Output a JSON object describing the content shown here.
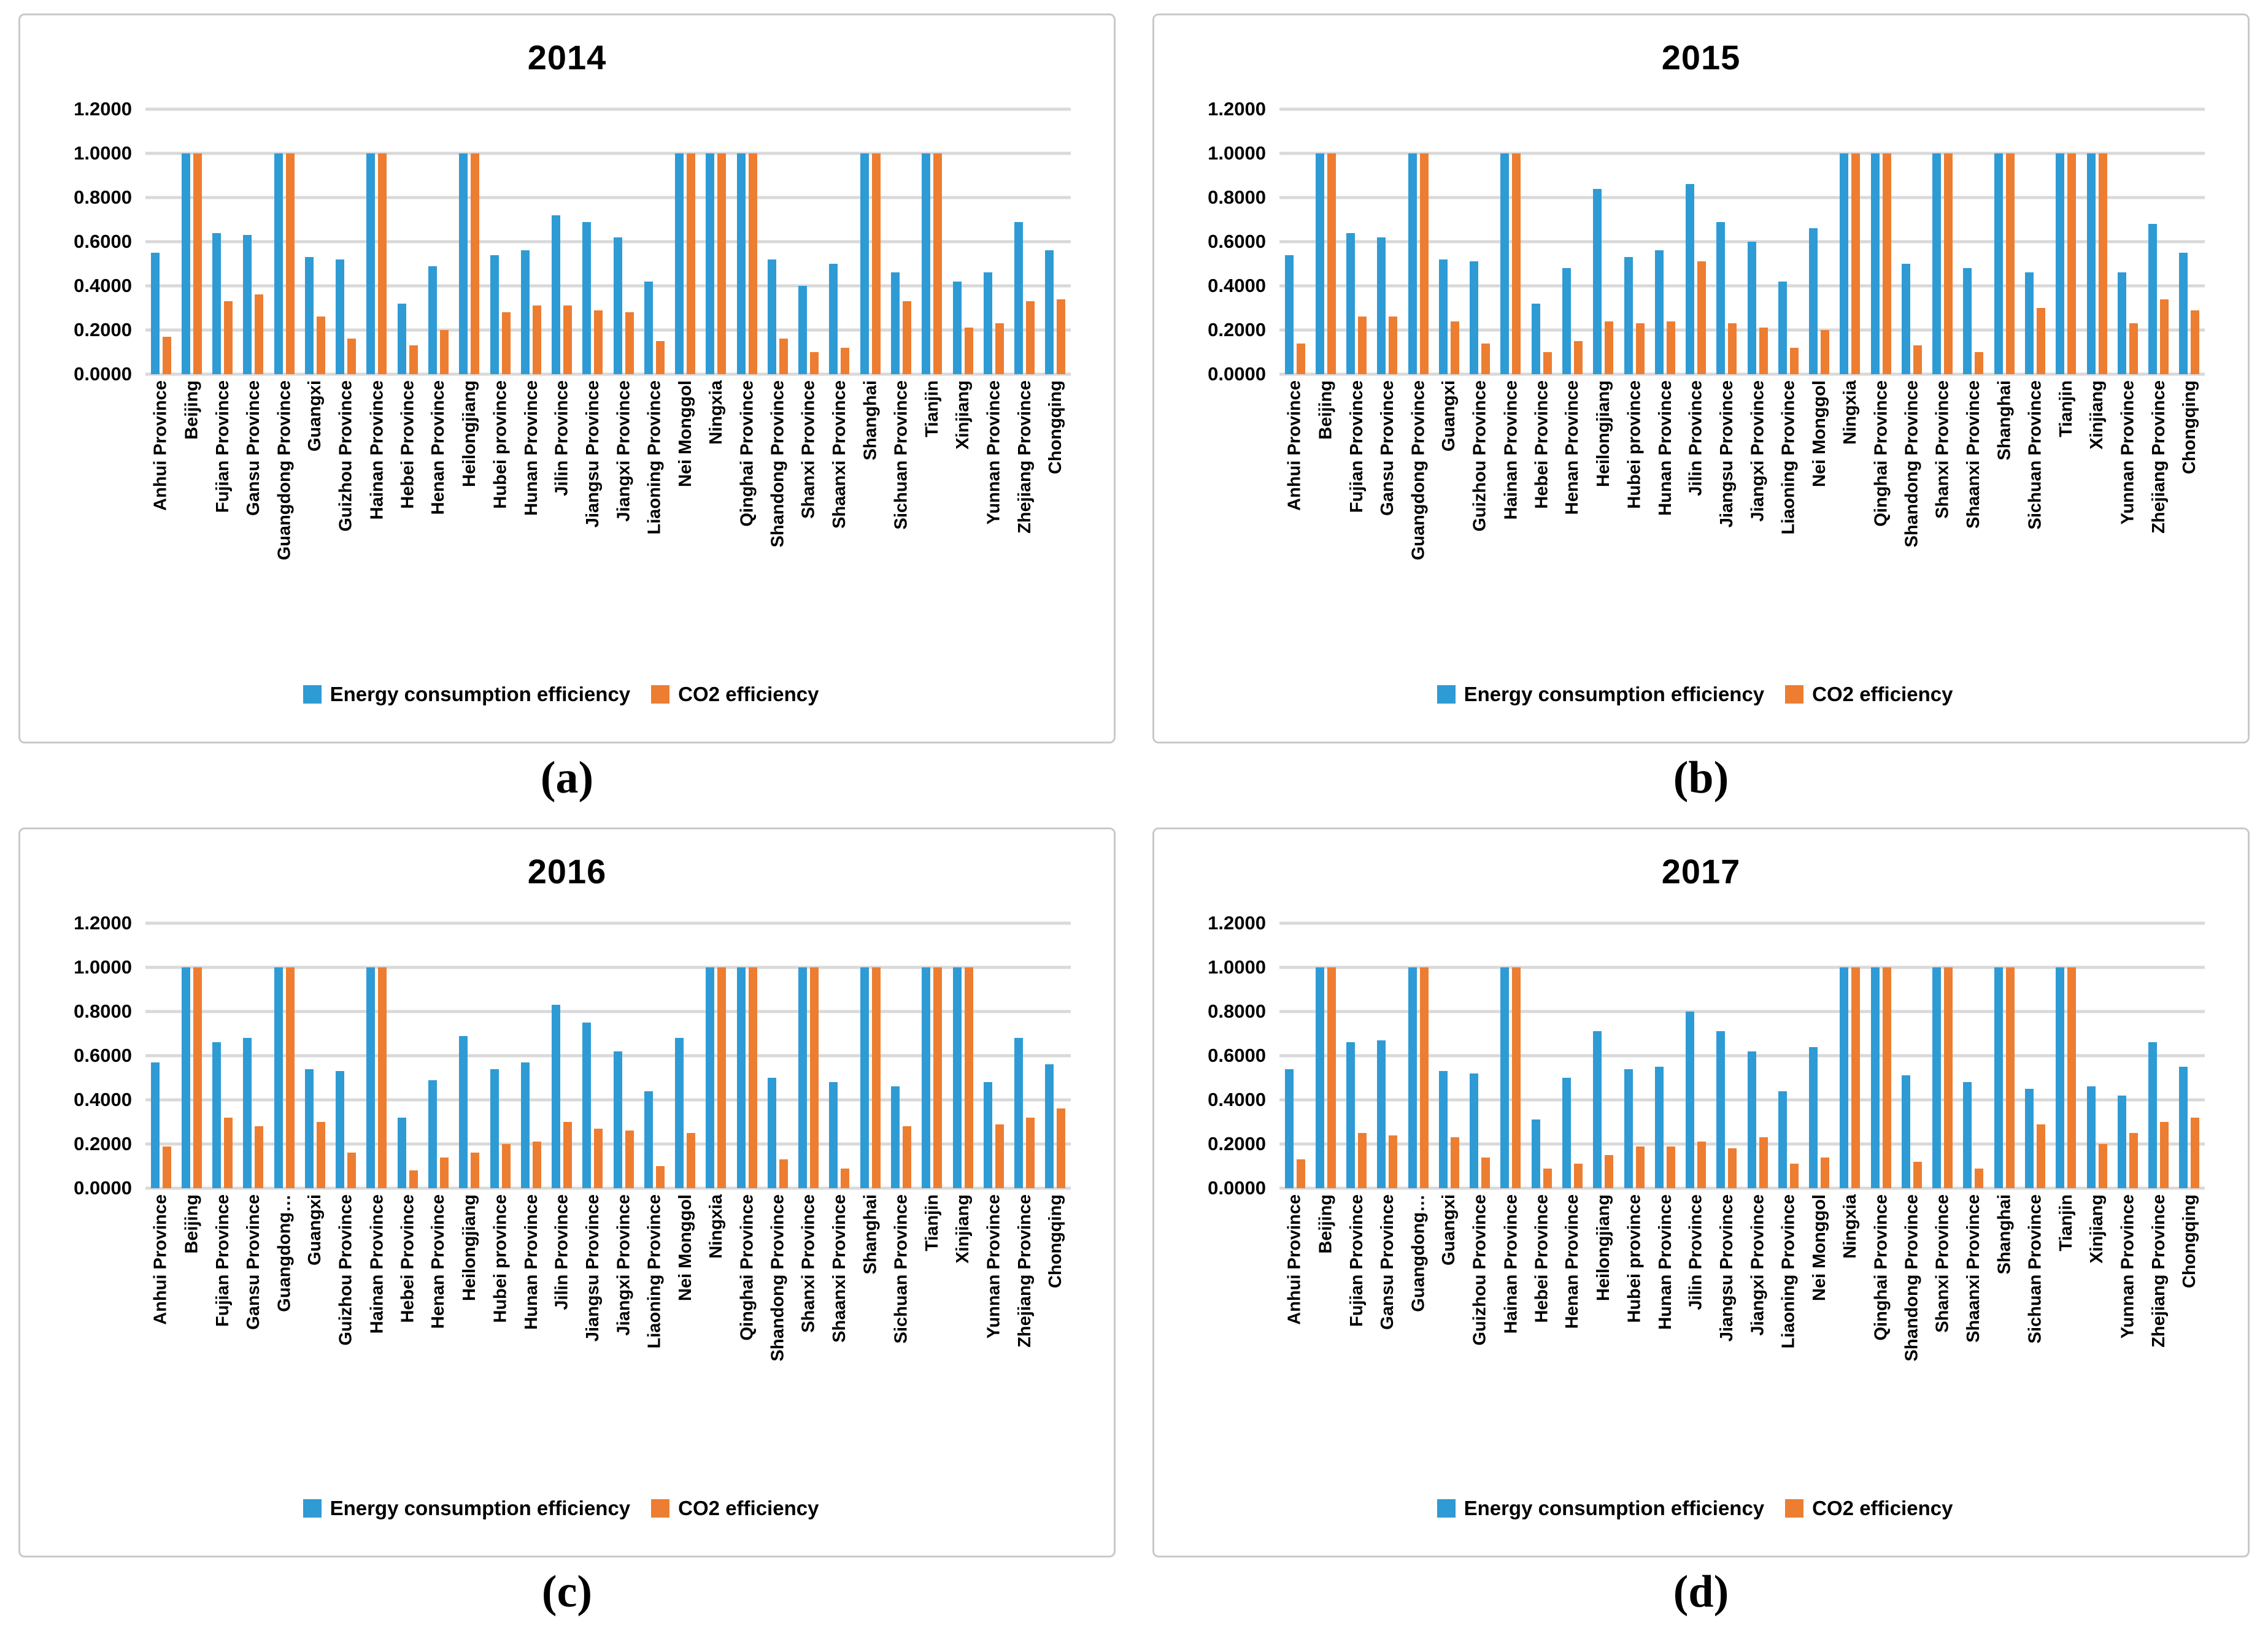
{
  "colors": {
    "energy": "#2e9bd5",
    "co2": "#ed7d31",
    "gridline": "#d9d9d9",
    "panel_border": "#c9c9c9",
    "text": "#000000"
  },
  "legend": {
    "energy_label": "Energy consumption efficiency",
    "co2_label": "CO2 efficiency"
  },
  "captions": [
    "(a)",
    "(b)",
    "(c)",
    "(d)"
  ],
  "chart_data": [
    {
      "type": "bar",
      "title": "2014",
      "xlabel": "",
      "ylabel": "",
      "ylim": [
        0,
        1.2
      ],
      "grid": true,
      "legend_position": "bottom",
      "yticks": [
        "1.2000",
        "1.0000",
        "0.8000",
        "0.6000",
        "0.4000",
        "0.2000",
        "0.0000"
      ],
      "categories": [
        "Anhui Province",
        "Beijing",
        "Fujian Province",
        "Gansu Province",
        "Guangdong Province",
        "Guangxi",
        "Guizhou Province",
        "Hainan Province",
        "Hebei Province",
        "Henan Province",
        "Heilongjiang",
        "Hubei province",
        "Hunan Province",
        "Jilin Province",
        "Jiangsu Province",
        "Jiangxi Province",
        "Liaoning Province",
        "Nei Monggol",
        "Ningxia",
        "Qinghai Province",
        "Shandong Province",
        "Shanxi Province",
        "Shaanxi Province",
        "Shanghai",
        "Sichuan Province",
        "Tianjin",
        "Xinjiang",
        "Yunnan Province",
        "Zhejiang Province",
        "Chongqing"
      ],
      "series": [
        {
          "name": "Energy consumption efficiency",
          "values": [
            0.55,
            1.0,
            0.64,
            0.63,
            1.0,
            0.53,
            0.52,
            1.0,
            0.32,
            0.49,
            1.0,
            0.54,
            0.56,
            0.72,
            0.69,
            0.62,
            0.42,
            1.0,
            1.0,
            1.0,
            0.52,
            0.4,
            0.5,
            1.0,
            0.46,
            1.0,
            0.42,
            0.46,
            0.69,
            0.56
          ]
        },
        {
          "name": "CO2 efficiency",
          "values": [
            0.17,
            1.0,
            0.33,
            0.36,
            1.0,
            0.26,
            0.16,
            1.0,
            0.13,
            0.2,
            1.0,
            0.28,
            0.31,
            0.31,
            0.29,
            0.28,
            0.15,
            1.0,
            1.0,
            1.0,
            0.16,
            0.1,
            0.12,
            1.0,
            0.33,
            1.0,
            0.21,
            0.23,
            0.33,
            0.34
          ]
        }
      ]
    },
    {
      "type": "bar",
      "title": "2015",
      "xlabel": "",
      "ylabel": "",
      "ylim": [
        0,
        1.2
      ],
      "grid": true,
      "legend_position": "bottom",
      "yticks": [
        "1.2000",
        "1.0000",
        "0.8000",
        "0.6000",
        "0.4000",
        "0.2000",
        "0.0000"
      ],
      "categories": [
        "Anhui Province",
        "Beijing",
        "Fujian Province",
        "Gansu Province",
        "Guangdong Province",
        "Guangxi",
        "Guizhou Province",
        "Hainan Province",
        "Hebei Province",
        "Henan Province",
        "Heilongjiang",
        "Hubei province",
        "Hunan Province",
        "Jilin Province",
        "Jiangsu Province",
        "Jiangxi Province",
        "Liaoning Province",
        "Nei Monggol",
        "Ningxia",
        "Qinghai Province",
        "Shandong Province",
        "Shanxi Province",
        "Shaanxi Province",
        "Shanghai",
        "Sichuan Province",
        "Tianjin",
        "Xinjiang",
        "Yunnan Province",
        "Zhejiang Province",
        "Chongqing"
      ],
      "series": [
        {
          "name": "Energy consumption efficiency",
          "values": [
            0.54,
            1.0,
            0.64,
            0.62,
            1.0,
            0.52,
            0.51,
            1.0,
            0.32,
            0.48,
            0.84,
            0.53,
            0.56,
            0.86,
            0.69,
            0.6,
            0.42,
            0.66,
            1.0,
            1.0,
            0.5,
            1.0,
            0.48,
            1.0,
            0.46,
            1.0,
            1.0,
            0.46,
            0.68,
            0.55
          ]
        },
        {
          "name": "CO2 efficiency",
          "values": [
            0.14,
            1.0,
            0.26,
            0.26,
            1.0,
            0.24,
            0.14,
            1.0,
            0.1,
            0.15,
            0.24,
            0.23,
            0.24,
            0.51,
            0.23,
            0.21,
            0.12,
            0.2,
            1.0,
            1.0,
            0.13,
            1.0,
            0.1,
            1.0,
            0.3,
            1.0,
            1.0,
            0.23,
            0.34,
            0.29
          ]
        }
      ]
    },
    {
      "type": "bar",
      "title": "2016",
      "xlabel": "",
      "ylabel": "",
      "ylim": [
        0,
        1.2
      ],
      "grid": true,
      "legend_position": "bottom",
      "yticks": [
        "1.2000",
        "1.0000",
        "0.8000",
        "0.6000",
        "0.4000",
        "0.2000",
        "0.0000"
      ],
      "categories": [
        "Anhui Province",
        "Beijing",
        "Fujian Province",
        "Gansu Province",
        "Guangdong…",
        "Guangxi",
        "Guizhou Province",
        "Hainan Province",
        "Hebei Province",
        "Henan Province",
        "Heilongjiang",
        "Hubei province",
        "Hunan Province",
        "Jilin Province",
        "Jiangsu Province",
        "Jiangxi Province",
        "Liaoning Province",
        "Nei Monggol",
        "Ningxia",
        "Qinghai Province",
        "Shandong Province",
        "Shanxi Province",
        "Shaanxi Province",
        "Shanghai",
        "Sichuan Province",
        "Tianjin",
        "Xinjiang",
        "Yunnan Province",
        "Zhejiang Province",
        "Chongqing"
      ],
      "series": [
        {
          "name": "Energy consumption efficiency",
          "values": [
            0.57,
            1.0,
            0.66,
            0.68,
            1.0,
            0.54,
            0.53,
            1.0,
            0.32,
            0.49,
            0.69,
            0.54,
            0.57,
            0.83,
            0.75,
            0.62,
            0.44,
            0.68,
            1.0,
            1.0,
            0.5,
            1.0,
            0.48,
            1.0,
            0.46,
            1.0,
            1.0,
            0.48,
            0.68,
            0.56
          ]
        },
        {
          "name": "CO2 efficiency",
          "values": [
            0.19,
            1.0,
            0.32,
            0.28,
            1.0,
            0.3,
            0.16,
            1.0,
            0.08,
            0.14,
            0.16,
            0.2,
            0.21,
            0.3,
            0.27,
            0.26,
            0.1,
            0.25,
            1.0,
            1.0,
            0.13,
            1.0,
            0.09,
            1.0,
            0.28,
            1.0,
            1.0,
            0.29,
            0.32,
            0.36
          ]
        }
      ]
    },
    {
      "type": "bar",
      "title": "2017",
      "xlabel": "",
      "ylabel": "",
      "ylim": [
        0,
        1.2
      ],
      "grid": true,
      "legend_position": "bottom",
      "yticks": [
        "1.2000",
        "1.0000",
        "0.8000",
        "0.6000",
        "0.4000",
        "0.2000",
        "0.0000"
      ],
      "categories": [
        "Anhui Province",
        "Beijing",
        "Fujian Province",
        "Gansu Province",
        "Guangdong…",
        "Guangxi",
        "Guizhou Province",
        "Hainan Province",
        "Hebei Province",
        "Henan Province",
        "Heilongjiang",
        "Hubei province",
        "Hunan Province",
        "Jilin Province",
        "Jiangsu Province",
        "Jiangxi Province",
        "Liaoning Province",
        "Nei Monggol",
        "Ningxia",
        "Qinghai Province",
        "Shandong Province",
        "Shanxi Province",
        "Shaanxi Province",
        "Shanghai",
        "Sichuan Province",
        "Tianjin",
        "Xinjiang",
        "Yunnan Province",
        "Zhejiang Province",
        "Chongqing"
      ],
      "series": [
        {
          "name": "Energy consumption efficiency",
          "values": [
            0.54,
            1.0,
            0.66,
            0.67,
            1.0,
            0.53,
            0.52,
            1.0,
            0.31,
            0.5,
            0.71,
            0.54,
            0.55,
            0.8,
            0.71,
            0.62,
            0.44,
            0.64,
            1.0,
            1.0,
            0.51,
            1.0,
            0.48,
            1.0,
            0.45,
            1.0,
            0.46,
            0.42,
            0.66,
            0.55
          ]
        },
        {
          "name": "CO2 efficiency",
          "values": [
            0.13,
            1.0,
            0.25,
            0.24,
            1.0,
            0.23,
            0.14,
            1.0,
            0.09,
            0.11,
            0.15,
            0.19,
            0.19,
            0.21,
            0.18,
            0.23,
            0.11,
            0.14,
            1.0,
            1.0,
            0.12,
            1.0,
            0.09,
            1.0,
            0.29,
            1.0,
            0.2,
            0.25,
            0.3,
            0.32
          ]
        }
      ]
    }
  ]
}
